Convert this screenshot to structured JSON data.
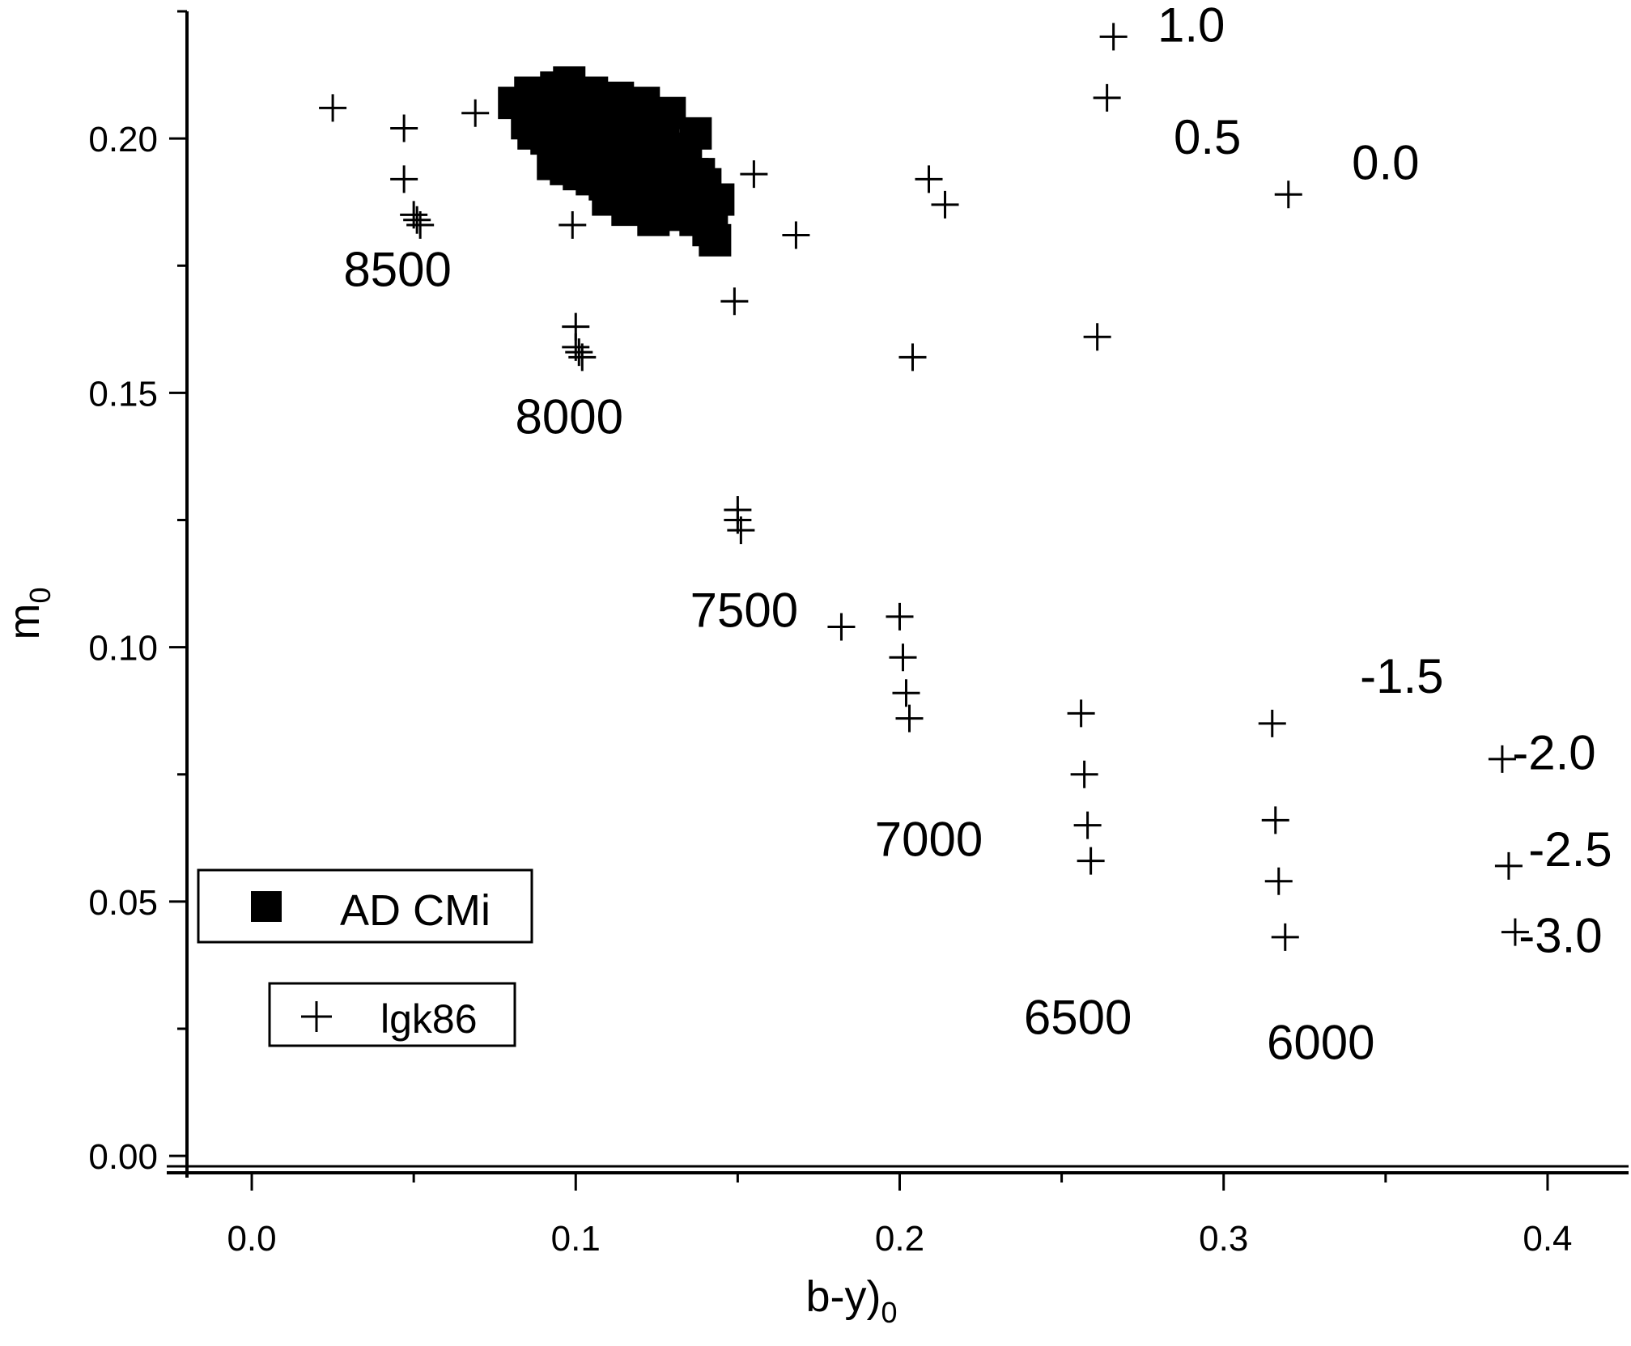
{
  "chart_data": {
    "type": "scatter",
    "title": "",
    "xlabel": "b-y)",
    "xlabel_sub": "0",
    "ylabel": "m",
    "ylabel_sub": "0",
    "xlim": [
      -0.02,
      0.425
    ],
    "ylim": [
      -0.003,
      0.225
    ],
    "x_ticks": [
      0.0,
      0.1,
      0.2,
      0.3,
      0.4
    ],
    "x_tick_labels": [
      "0.0",
      "0.1",
      "0.2",
      "0.3",
      "0.4"
    ],
    "y_ticks": [
      0.0,
      0.05,
      0.1,
      0.15,
      0.2
    ],
    "y_tick_labels": [
      "0.00",
      "0.05",
      "0.10",
      "0.15",
      "0.20"
    ],
    "grid": false,
    "legend": [
      {
        "name": "AD CMi",
        "marker": "filled-square"
      },
      {
        "name": "lgk86",
        "marker": "plus"
      }
    ],
    "legend_position": "bottom-left",
    "colors": {
      "ink": "#000000",
      "background": "#ffffff"
    },
    "series": [
      {
        "name": "AD CMi",
        "marker": "filled-square",
        "x": [
          0.081,
          0.086,
          0.09,
          0.094,
          0.098,
          0.092,
          0.096,
          0.1,
          0.104,
          0.108,
          0.112,
          0.116,
          0.12,
          0.124,
          0.128,
          0.132,
          0.136,
          0.14,
          0.144,
          0.087,
          0.091,
          0.095,
          0.099,
          0.103,
          0.107,
          0.111,
          0.115,
          0.119,
          0.123,
          0.127,
          0.131,
          0.135,
          0.139,
          0.093,
          0.097,
          0.101,
          0.105,
          0.109,
          0.113,
          0.117,
          0.121,
          0.125,
          0.129,
          0.133,
          0.137,
          0.141,
          0.102,
          0.106,
          0.11,
          0.114,
          0.118,
          0.122,
          0.126,
          0.13,
          0.134,
          0.138,
          0.089,
          0.099,
          0.103,
          0.107,
          0.111,
          0.115,
          0.119,
          0.123,
          0.127,
          0.131,
          0.085,
          0.095,
          0.105,
          0.113,
          0.121,
          0.129,
          0.137,
          0.142,
          0.143,
          0.11,
          0.116,
          0.124
        ],
        "y": [
          0.207,
          0.209,
          0.208,
          0.21,
          0.211,
          0.203,
          0.204,
          0.202,
          0.201,
          0.2,
          0.199,
          0.198,
          0.197,
          0.196,
          0.195,
          0.194,
          0.193,
          0.191,
          0.188,
          0.201,
          0.2,
          0.199,
          0.198,
          0.197,
          0.196,
          0.195,
          0.194,
          0.193,
          0.192,
          0.191,
          0.19,
          0.188,
          0.186,
          0.195,
          0.194,
          0.193,
          0.192,
          0.191,
          0.19,
          0.189,
          0.188,
          0.187,
          0.186,
          0.185,
          0.184,
          0.182,
          0.205,
          0.206,
          0.205,
          0.204,
          0.203,
          0.202,
          0.2,
          0.198,
          0.196,
          0.193,
          0.205,
          0.207,
          0.208,
          0.207,
          0.206,
          0.205,
          0.203,
          0.201,
          0.199,
          0.197,
          0.203,
          0.209,
          0.209,
          0.208,
          0.207,
          0.205,
          0.201,
          0.184,
          0.18,
          0.188,
          0.186,
          0.184
        ]
      },
      {
        "name": "lgk86",
        "marker": "plus",
        "x": [
          0.025,
          0.047,
          0.047,
          0.05,
          0.051,
          0.052,
          0.069,
          0.099,
          0.1,
          0.1,
          0.101,
          0.102,
          0.149,
          0.15,
          0.15,
          0.151,
          0.155,
          0.168,
          0.182,
          0.2,
          0.201,
          0.202,
          0.203,
          0.204,
          0.209,
          0.214,
          0.256,
          0.257,
          0.258,
          0.259,
          0.261,
          0.264,
          0.266,
          0.315,
          0.316,
          0.317,
          0.319,
          0.32,
          0.386,
          0.388,
          0.39
        ],
        "y": [
          0.206,
          0.202,
          0.192,
          0.185,
          0.184,
          0.183,
          0.205,
          0.183,
          0.163,
          0.159,
          0.158,
          0.157,
          0.168,
          0.127,
          0.125,
          0.123,
          0.193,
          0.181,
          0.104,
          0.106,
          0.098,
          0.091,
          0.086,
          0.157,
          0.192,
          0.187,
          0.087,
          0.075,
          0.065,
          0.058,
          0.161,
          0.208,
          0.22,
          0.085,
          0.066,
          0.054,
          0.043,
          0.189,
          0.078,
          0.057,
          0.044
        ]
      }
    ],
    "annotations": [
      {
        "text": "8500",
        "x": 0.045,
        "y": 0.171
      },
      {
        "text": "8000",
        "x": 0.098,
        "y": 0.142
      },
      {
        "text": "7500",
        "x": 0.152,
        "y": 0.104
      },
      {
        "text": "7000",
        "x": 0.209,
        "y": 0.059
      },
      {
        "text": "6500",
        "x": 0.255,
        "y": 0.024
      },
      {
        "text": "6000",
        "x": 0.33,
        "y": 0.019
      },
      {
        "text": "1.0",
        "x": 0.29,
        "y": 0.219
      },
      {
        "text": "0.5",
        "x": 0.295,
        "y": 0.197
      },
      {
        "text": "0.0",
        "x": 0.35,
        "y": 0.192
      },
      {
        "text": "-1.5",
        "x": 0.355,
        "y": 0.091
      },
      {
        "text": "-2.0",
        "x": 0.402,
        "y": 0.076
      },
      {
        "text": "-2.5",
        "x": 0.407,
        "y": 0.057
      },
      {
        "text": "-3.0",
        "x": 0.404,
        "y": 0.04
      }
    ]
  }
}
